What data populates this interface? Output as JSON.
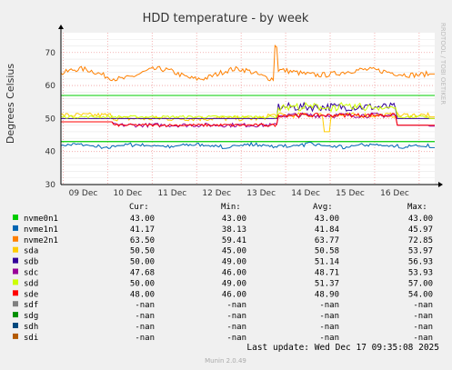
{
  "chart_data": {
    "type": "line",
    "title": "HDD temperature - by week",
    "ylabel": "Degrees Celsius",
    "side_text": "RRDTOOL / TOBI OETIKER",
    "ylim": [
      30,
      76
    ],
    "yticks": [
      30,
      40,
      50,
      60,
      70
    ],
    "xticks": [
      "09 Dec",
      "10 Dec",
      "11 Dec",
      "12 Dec",
      "13 Dec",
      "14 Dec",
      "15 Dec",
      "16 Dec"
    ],
    "warning_lines": [
      {
        "value": 57,
        "color": "#00cc00"
      },
      {
        "value": 43,
        "color": "#00cc00"
      }
    ],
    "series": [
      {
        "name": "nvme0n1",
        "color": "#00cc00"
      },
      {
        "name": "nvme1n1",
        "color": "#0066b3"
      },
      {
        "name": "nvme2n1",
        "color": "#ff8000"
      },
      {
        "name": "sda",
        "color": "#ffcc00"
      },
      {
        "name": "sdb",
        "color": "#330099"
      },
      {
        "name": "sdc",
        "color": "#990099"
      },
      {
        "name": "sdd",
        "color": "#ccff00"
      },
      {
        "name": "sde",
        "color": "#ff0000"
      },
      {
        "name": "sdf",
        "color": "#808080"
      },
      {
        "name": "sdg",
        "color": "#008f00"
      },
      {
        "name": "sdh",
        "color": "#00487d"
      },
      {
        "name": "sdi",
        "color": "#b35a00"
      }
    ],
    "legend_headers": {
      "cur": "Cur:",
      "min": "Min:",
      "avg": "Avg:",
      "max": "Max:"
    },
    "legend_rows": [
      {
        "name": "nvme0n1",
        "cur": "43.00",
        "min": "43.00",
        "avg": "43.00",
        "max": "43.00"
      },
      {
        "name": "nvme1n1",
        "cur": "41.17",
        "min": "38.13",
        "avg": "41.84",
        "max": "45.97"
      },
      {
        "name": "nvme2n1",
        "cur": "63.50",
        "min": "59.41",
        "avg": "63.77",
        "max": "72.85"
      },
      {
        "name": "sda",
        "cur": "50.50",
        "min": "45.00",
        "avg": "50.58",
        "max": "53.97"
      },
      {
        "name": "sdb",
        "cur": "50.00",
        "min": "49.00",
        "avg": "51.14",
        "max": "56.93"
      },
      {
        "name": "sdc",
        "cur": "47.68",
        "min": "46.00",
        "avg": "48.71",
        "max": "53.93"
      },
      {
        "name": "sdd",
        "cur": "50.00",
        "min": "49.00",
        "avg": "51.37",
        "max": "57.00"
      },
      {
        "name": "sde",
        "cur": "48.00",
        "min": "46.00",
        "avg": "48.90",
        "max": "54.00"
      },
      {
        "name": "sdf",
        "cur": "-nan",
        "min": "-nan",
        "avg": "-nan",
        "max": "-nan"
      },
      {
        "name": "sdg",
        "cur": "-nan",
        "min": "-nan",
        "avg": "-nan",
        "max": "-nan"
      },
      {
        "name": "sdh",
        "cur": "-nan",
        "min": "-nan",
        "avg": "-nan",
        "max": "-nan"
      },
      {
        "name": "sdi",
        "cur": "-nan",
        "min": "-nan",
        "avg": "-nan",
        "max": "-nan"
      }
    ],
    "last_update": "Last update: Wed Dec 17 09:35:08 2025",
    "footer": "Munin 2.0.49"
  }
}
